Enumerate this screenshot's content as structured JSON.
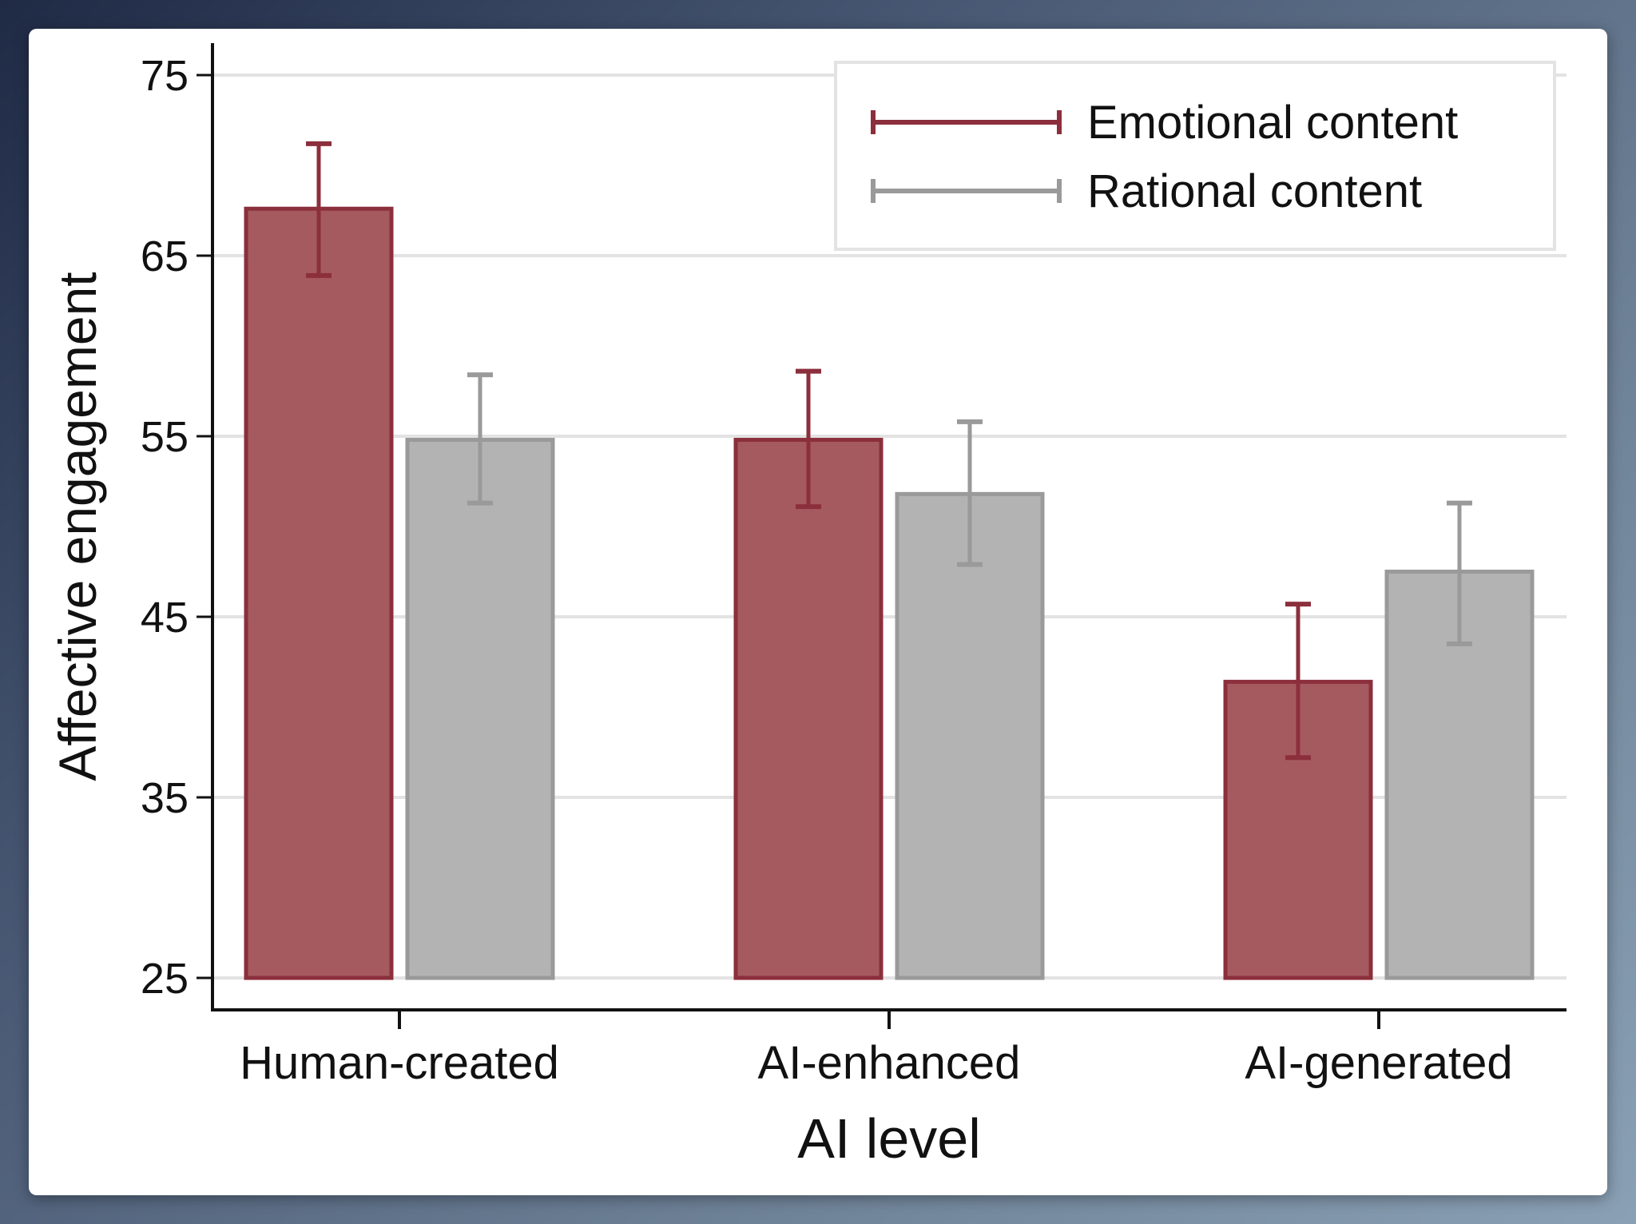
{
  "chart_data": {
    "type": "bar",
    "xlabel": "AI level",
    "ylabel": "Affective engagement",
    "ylim": [
      25,
      75
    ],
    "yticks": [
      25,
      35,
      45,
      55,
      65,
      75
    ],
    "categories": [
      "Human-created",
      "AI-enhanced",
      "AI-generated"
    ],
    "grid": true,
    "legend_position": "top-right",
    "series": [
      {
        "name": "Emotional content",
        "color": "#a55a60",
        "edge_color": "#8c2f3c",
        "values": [
          67.6,
          54.8,
          41.4
        ],
        "ci_low": [
          63.9,
          51.1,
          37.2
        ],
        "ci_high": [
          71.2,
          58.6,
          45.7
        ]
      },
      {
        "name": "Rational content",
        "color": "#b3b3b3",
        "edge_color": "#9a9a9a",
        "values": [
          54.8,
          51.8,
          47.5
        ],
        "ci_low": [
          51.3,
          47.9,
          43.5
        ],
        "ci_high": [
          58.4,
          55.8,
          51.3
        ]
      }
    ]
  }
}
